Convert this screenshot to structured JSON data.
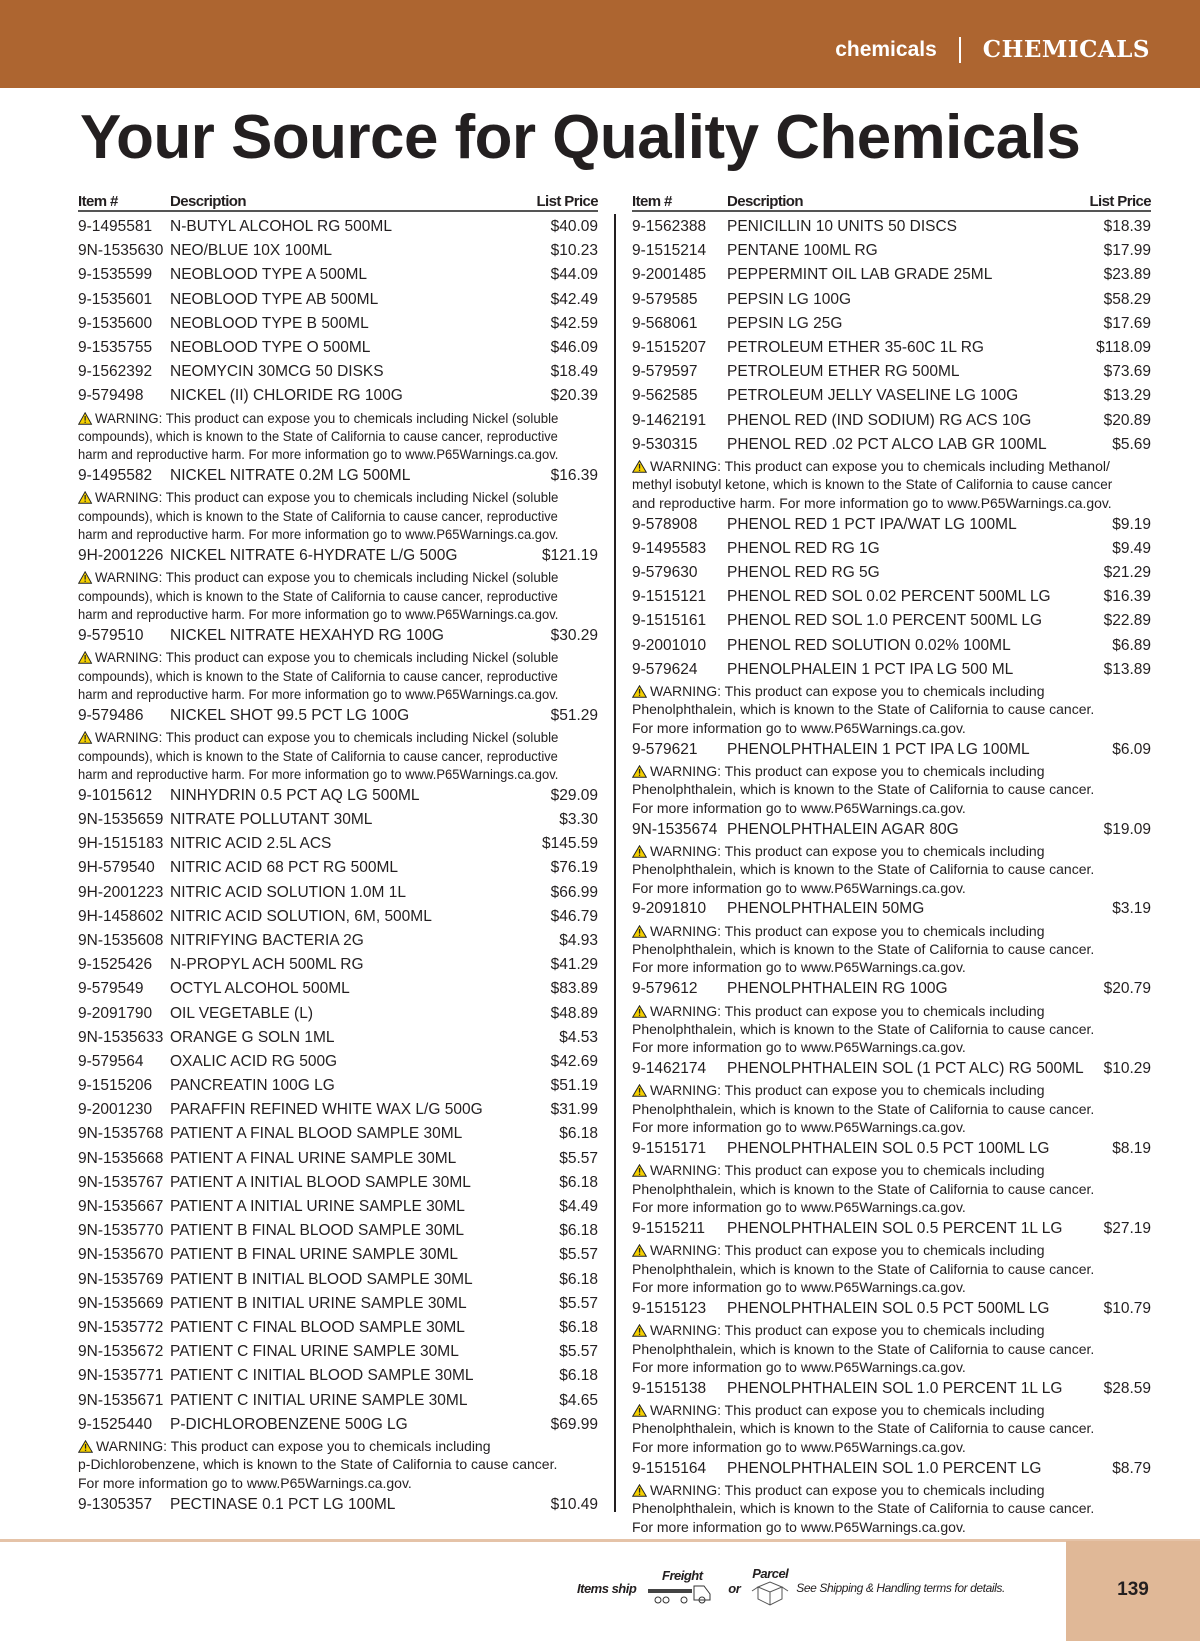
{
  "header": {
    "section_lower": "chemicals",
    "section_upper": "CHEMICALS",
    "color": "#ad6530"
  },
  "title": "Your Source for Quality Chemicals",
  "table_headers": {
    "item": "Item #",
    "description": "Description",
    "price": "List Price"
  },
  "warnings": {
    "nickel": [
      "WARNING: This product can expose you to chemicals including Nickel (soluble",
      "compounds), which is known to the State of California to cause cancer, reproductive",
      "harm and reproductive harm. For more information go to www.P65Warnings.ca.gov."
    ],
    "dichlorobenzene": [
      "WARNING: This product can expose you to chemicals including",
      "p-Dichlorobenzene, which is known to the State of California to cause cancer.",
      "For more information go to www.P65Warnings.ca.gov."
    ],
    "methanol": [
      "WARNING: This product can expose you to chemicals including Methanol/",
      "methyl isobutyl ketone, which is known to the State of California to cause cancer",
      "and reproductive harm. For more information go to www.P65Warnings.ca.gov."
    ],
    "phenolphthalein": [
      "WARNING: This product can expose you to chemicals including",
      "Phenolphthalein, which is known to the State of California to cause cancer.",
      "For more information go to www.P65Warnings.ca.gov."
    ]
  },
  "columns": [
    [
      {
        "item": "9-1495581",
        "desc": "N-BUTYL ALCOHOL RG 500ML",
        "price": "$40.09"
      },
      {
        "item": "9N-1535630",
        "desc": "NEO/BLUE 10X 100ML",
        "price": "$10.23"
      },
      {
        "item": "9-1535599",
        "desc": "NEOBLOOD TYPE A 500ML",
        "price": "$44.09"
      },
      {
        "item": "9-1535601",
        "desc": "NEOBLOOD TYPE AB 500ML",
        "price": "$42.49"
      },
      {
        "item": "9-1535600",
        "desc": "NEOBLOOD TYPE B 500ML",
        "price": "$42.59"
      },
      {
        "item": "9-1535755",
        "desc": "NEOBLOOD TYPE O 500ML",
        "price": "$46.09"
      },
      {
        "item": "9-1562392",
        "desc": "NEOMYCIN 30MCG 50 DISKS",
        "price": "$18.49"
      },
      {
        "item": "9-579498",
        "desc": "NICKEL (II) CHLORIDE RG 100G",
        "price": "$20.39",
        "warning": "nickel"
      },
      {
        "item": "9-1495582",
        "desc": "NICKEL NITRATE 0.2M LG 500ML",
        "price": "$16.39",
        "warning": "nickel"
      },
      {
        "item": "9H-2001226",
        "desc": "NICKEL NITRATE 6-HYDRATE L/G 500G",
        "price": "$121.19",
        "warning": "nickel"
      },
      {
        "item": "9-579510",
        "desc": "NICKEL NITRATE HEXAHYD RG 100G",
        "price": "$30.29",
        "warning": "nickel"
      },
      {
        "item": "9-579486",
        "desc": "NICKEL SHOT 99.5 PCT LG 100G",
        "price": "$51.29",
        "warning": "nickel"
      },
      {
        "item": "9-1015612",
        "desc": "NINHYDRIN 0.5 PCT AQ LG 500ML",
        "price": "$29.09"
      },
      {
        "item": "9N-1535659",
        "desc": "NITRATE POLLUTANT 30ML",
        "price": "$3.30"
      },
      {
        "item": "9H-1515183",
        "desc": "NITRIC ACID 2.5L ACS",
        "price": "$145.59"
      },
      {
        "item": "9H-579540",
        "desc": "NITRIC ACID 68 PCT RG 500ML",
        "price": "$76.19"
      },
      {
        "item": "9H-2001223",
        "desc": "NITRIC ACID SOLUTION 1.0M 1L",
        "price": "$66.99"
      },
      {
        "item": "9H-1458602",
        "desc": "NITRIC ACID SOLUTION, 6M, 500ML",
        "price": "$46.79"
      },
      {
        "item": "9N-1535608",
        "desc": "NITRIFYING BACTERIA 2G",
        "price": "$4.93"
      },
      {
        "item": "9-1525426",
        "desc": "N-PROPYL ACH 500ML RG",
        "price": "$41.29"
      },
      {
        "item": "9-579549",
        "desc": "OCTYL ALCOHOL 500ML",
        "price": "$83.89"
      },
      {
        "item": "9-2091790",
        "desc": "OIL VEGETABLE  (L)",
        "price": "$48.89"
      },
      {
        "item": "9N-1535633",
        "desc": "ORANGE G SOLN 1ML",
        "price": "$4.53"
      },
      {
        "item": "9-579564",
        "desc": "OXALIC ACID RG 500G",
        "price": "$42.69"
      },
      {
        "item": "9-1515206",
        "desc": "PANCREATIN 100G LG",
        "price": "$51.19"
      },
      {
        "item": "9-2001230",
        "desc": "PARAFFIN REFINED WHITE WAX L/G 500G",
        "price": "$31.99"
      },
      {
        "item": "9N-1535768",
        "desc": "PATIENT A FINAL BLOOD SAMPLE 30ML",
        "price": "$6.18"
      },
      {
        "item": "9N-1535668",
        "desc": "PATIENT A FINAL URINE SAMPLE 30ML",
        "price": "$5.57"
      },
      {
        "item": "9N-1535767",
        "desc": "PATIENT A INITIAL BLOOD SAMPLE 30ML",
        "price": "$6.18"
      },
      {
        "item": "9N-1535667",
        "desc": "PATIENT A INITIAL URINE SAMPLE 30ML",
        "price": "$4.49"
      },
      {
        "item": "9N-1535770",
        "desc": "PATIENT B FINAL BLOOD SAMPLE 30ML",
        "price": "$6.18"
      },
      {
        "item": "9N-1535670",
        "desc": "PATIENT B FINAL URINE SAMPLE 30ML",
        "price": "$5.57"
      },
      {
        "item": "9N-1535769",
        "desc": "PATIENT B INITIAL BLOOD SAMPLE 30ML",
        "price": "$6.18"
      },
      {
        "item": "9N-1535669",
        "desc": "PATIENT B INITIAL URINE SAMPLE 30ML",
        "price": "$5.57"
      },
      {
        "item": "9N-1535772",
        "desc": "PATIENT C FINAL BLOOD SAMPLE 30ML",
        "price": "$6.18"
      },
      {
        "item": "9N-1535672",
        "desc": "PATIENT C FINAL URINE SAMPLE 30ML",
        "price": "$5.57"
      },
      {
        "item": "9N-1535771",
        "desc": "PATIENT C INITIAL BLOOD SAMPLE 30ML",
        "price": "$6.18"
      },
      {
        "item": "9N-1535671",
        "desc": "PATIENT C INITIAL URINE SAMPLE 30ML",
        "price": "$4.65"
      },
      {
        "item": "9-1525440",
        "desc": "P-DICHLOROBENZENE 500G LG",
        "price": "$69.99",
        "warning": "dichlorobenzene"
      },
      {
        "item": "9-1305357",
        "desc": "PECTINASE 0.1 PCT LG 100ML",
        "price": "$10.49"
      }
    ],
    [
      {
        "item": "9-1562388",
        "desc": "PENICILLIN 10 UNITS 50 DISCS",
        "price": "$18.39"
      },
      {
        "item": "9-1515214",
        "desc": "PENTANE 100ML RG",
        "price": "$17.99"
      },
      {
        "item": "9-2001485",
        "desc": "PEPPERMINT OIL LAB GRADE 25ML",
        "price": "$23.89"
      },
      {
        "item": "9-579585",
        "desc": "PEPSIN LG 100G",
        "price": "$58.29"
      },
      {
        "item": "9-568061",
        "desc": "PEPSIN LG 25G",
        "price": "$17.69"
      },
      {
        "item": "9-1515207",
        "desc": "PETROLEUM ETHER 35-60C 1L RG",
        "price": "$118.09"
      },
      {
        "item": "9-579597",
        "desc": "PETROLEUM ETHER RG 500ML",
        "price": "$73.69"
      },
      {
        "item": "9-562585",
        "desc": "PETROLEUM JELLY VASELINE LG 100G",
        "price": "$13.29"
      },
      {
        "item": "9-1462191",
        "desc": "PHENOL RED (IND SODIUM) RG ACS 10G",
        "price": "$20.89"
      },
      {
        "item": "9-530315",
        "desc": "PHENOL RED .02 PCT ALCO LAB GR 100ML",
        "price": "$5.69",
        "warning": "methanol"
      },
      {
        "item": "9-578908",
        "desc": "PHENOL RED 1 PCT IPA/WAT LG 100ML",
        "price": "$9.19"
      },
      {
        "item": "9-1495583",
        "desc": "PHENOL RED RG 1G",
        "price": "$9.49"
      },
      {
        "item": "9-579630",
        "desc": "PHENOL RED RG 5G",
        "price": "$21.29"
      },
      {
        "item": "9-1515121",
        "desc": "PHENOL RED SOL 0.02 PERCENT 500ML LG",
        "price": "$16.39"
      },
      {
        "item": "9-1515161",
        "desc": "PHENOL RED SOL 1.0 PERCENT 500ML LG",
        "price": "$22.89"
      },
      {
        "item": "9-2001010",
        "desc": "PHENOL RED SOLUTION 0.02% 100ML",
        "price": "$6.89"
      },
      {
        "item": "9-579624",
        "desc": "PHENOLPHALEIN 1 PCT IPA LG 500 ML",
        "price": "$13.89",
        "warning": "phenolphthalein"
      },
      {
        "item": "9-579621",
        "desc": "PHENOLPHTHALEIN 1 PCT IPA LG 100ML",
        "price": "$6.09",
        "warning": "phenolphthalein"
      },
      {
        "item": "9N-1535674",
        "desc": "PHENOLPHTHALEIN AGAR 80G",
        "price": "$19.09",
        "warning": "phenolphthalein"
      },
      {
        "item": "9-2091810",
        "desc": "PHENOLPHTHALEIN 50MG",
        "price": "$3.19",
        "warning": "phenolphthalein"
      },
      {
        "item": "9-579612",
        "desc": "PHENOLPHTHALEIN RG 100G",
        "price": "$20.79",
        "warning": "phenolphthalein"
      },
      {
        "item": "9-1462174",
        "desc": "PHENOLPHTHALEIN SOL (1 PCT ALC) RG 500ML",
        "price": "$10.29",
        "warning": "phenolphthalein"
      },
      {
        "item": "9-1515171",
        "desc": "PHENOLPHTHALEIN SOL 0.5 PCT 100ML LG",
        "price": "$8.19",
        "warning": "phenolphthalein"
      },
      {
        "item": "9-1515211",
        "desc": "PHENOLPHTHALEIN SOL 0.5 PERCENT 1L LG",
        "price": "$27.19",
        "warning": "phenolphthalein"
      },
      {
        "item": "9-1515123",
        "desc": "PHENOLPHTHALEIN SOL 0.5 PCT 500ML LG",
        "price": "$10.79",
        "warning": "phenolphthalein"
      },
      {
        "item": "9-1515138",
        "desc": "PHENOLPHTHALEIN SOL 1.0 PERCENT 1L LG",
        "price": "$28.59",
        "warning": "phenolphthalein"
      },
      {
        "item": "9-1515164",
        "desc": "PHENOLPHTHALEIN SOL 1.0 PERCENT LG",
        "price": "$8.79",
        "warning": "phenolphthalein"
      }
    ]
  ],
  "footer": {
    "items_ship": "Items ship",
    "freight": "Freight",
    "or": "or",
    "parcel": "Parcel",
    "note": "See Shipping & Handling terms for details.",
    "page_number": "139",
    "accent": "#e0b897"
  }
}
